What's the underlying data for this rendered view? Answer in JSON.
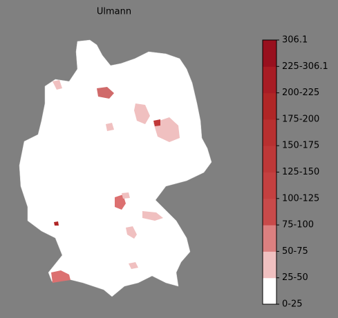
{
  "title": "Ulmann",
  "legend": {
    "labels": [
      "0-25",
      "25-50",
      "50-75",
      "75-100",
      "100-125",
      "125-150",
      "150-175",
      "175-200",
      "200-225",
      "225-306.1",
      "306.1"
    ],
    "colors": [
      "#ffffff",
      "#f0c0c0",
      "#dc8080",
      "#c94a4a",
      "#c44040",
      "#be3838",
      "#b83030",
      "#b02626",
      "#a81c24",
      "#98101e"
    ]
  }
}
